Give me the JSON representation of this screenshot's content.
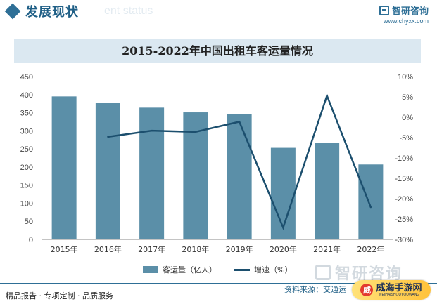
{
  "header": {
    "title": "发展现状",
    "ghost_text": "ent status",
    "brand_name": "智研咨询",
    "brand_url": "www.chyxx.com",
    "accent_color": "#2e6f96"
  },
  "legend": {
    "bar_label": "客运量（亿人）",
    "line_label": "增速（%）"
  },
  "watermark": {
    "text": "智研咨询"
  },
  "footer": {
    "left_text": "精品报告 · 专项定制 · 品质服务",
    "source_text": "资料来源：交通运",
    "badge_text": "威海手游网",
    "badge_sub": "WEIHAISHOUYOUWANG"
  },
  "chart_data": {
    "type": "bar",
    "title": "2015-2022年中国出租车客运量情况",
    "categories": [
      "2015年",
      "2016年",
      "2017年",
      "2018年",
      "2019年",
      "2020年",
      "2021年",
      "2022年"
    ],
    "series": [
      {
        "name": "客运量（亿人）",
        "type": "bar",
        "axis": "left",
        "color": "#5b8fa8",
        "values": [
          395,
          377,
          364,
          351,
          347,
          253,
          266,
          207
        ]
      },
      {
        "name": "增速（%）",
        "type": "line",
        "axis": "right",
        "color": "#1c4f6e",
        "values": [
          null,
          -4.8,
          -3.3,
          -3.6,
          -1.1,
          -27.1,
          5.3,
          -22.1
        ]
      }
    ],
    "y_left": {
      "min": 0,
      "max": 450,
      "step": 50,
      "ticks": [
        "0",
        "50",
        "100",
        "150",
        "200",
        "250",
        "300",
        "350",
        "400",
        "450"
      ]
    },
    "y_right": {
      "min": -30,
      "max": 10,
      "step": 5,
      "ticks": [
        "-30%",
        "-25%",
        "-20%",
        "-15%",
        "-10%",
        "-5%",
        "0%",
        "5%",
        "10%"
      ]
    },
    "grid": false,
    "legend_position": "bottom"
  }
}
